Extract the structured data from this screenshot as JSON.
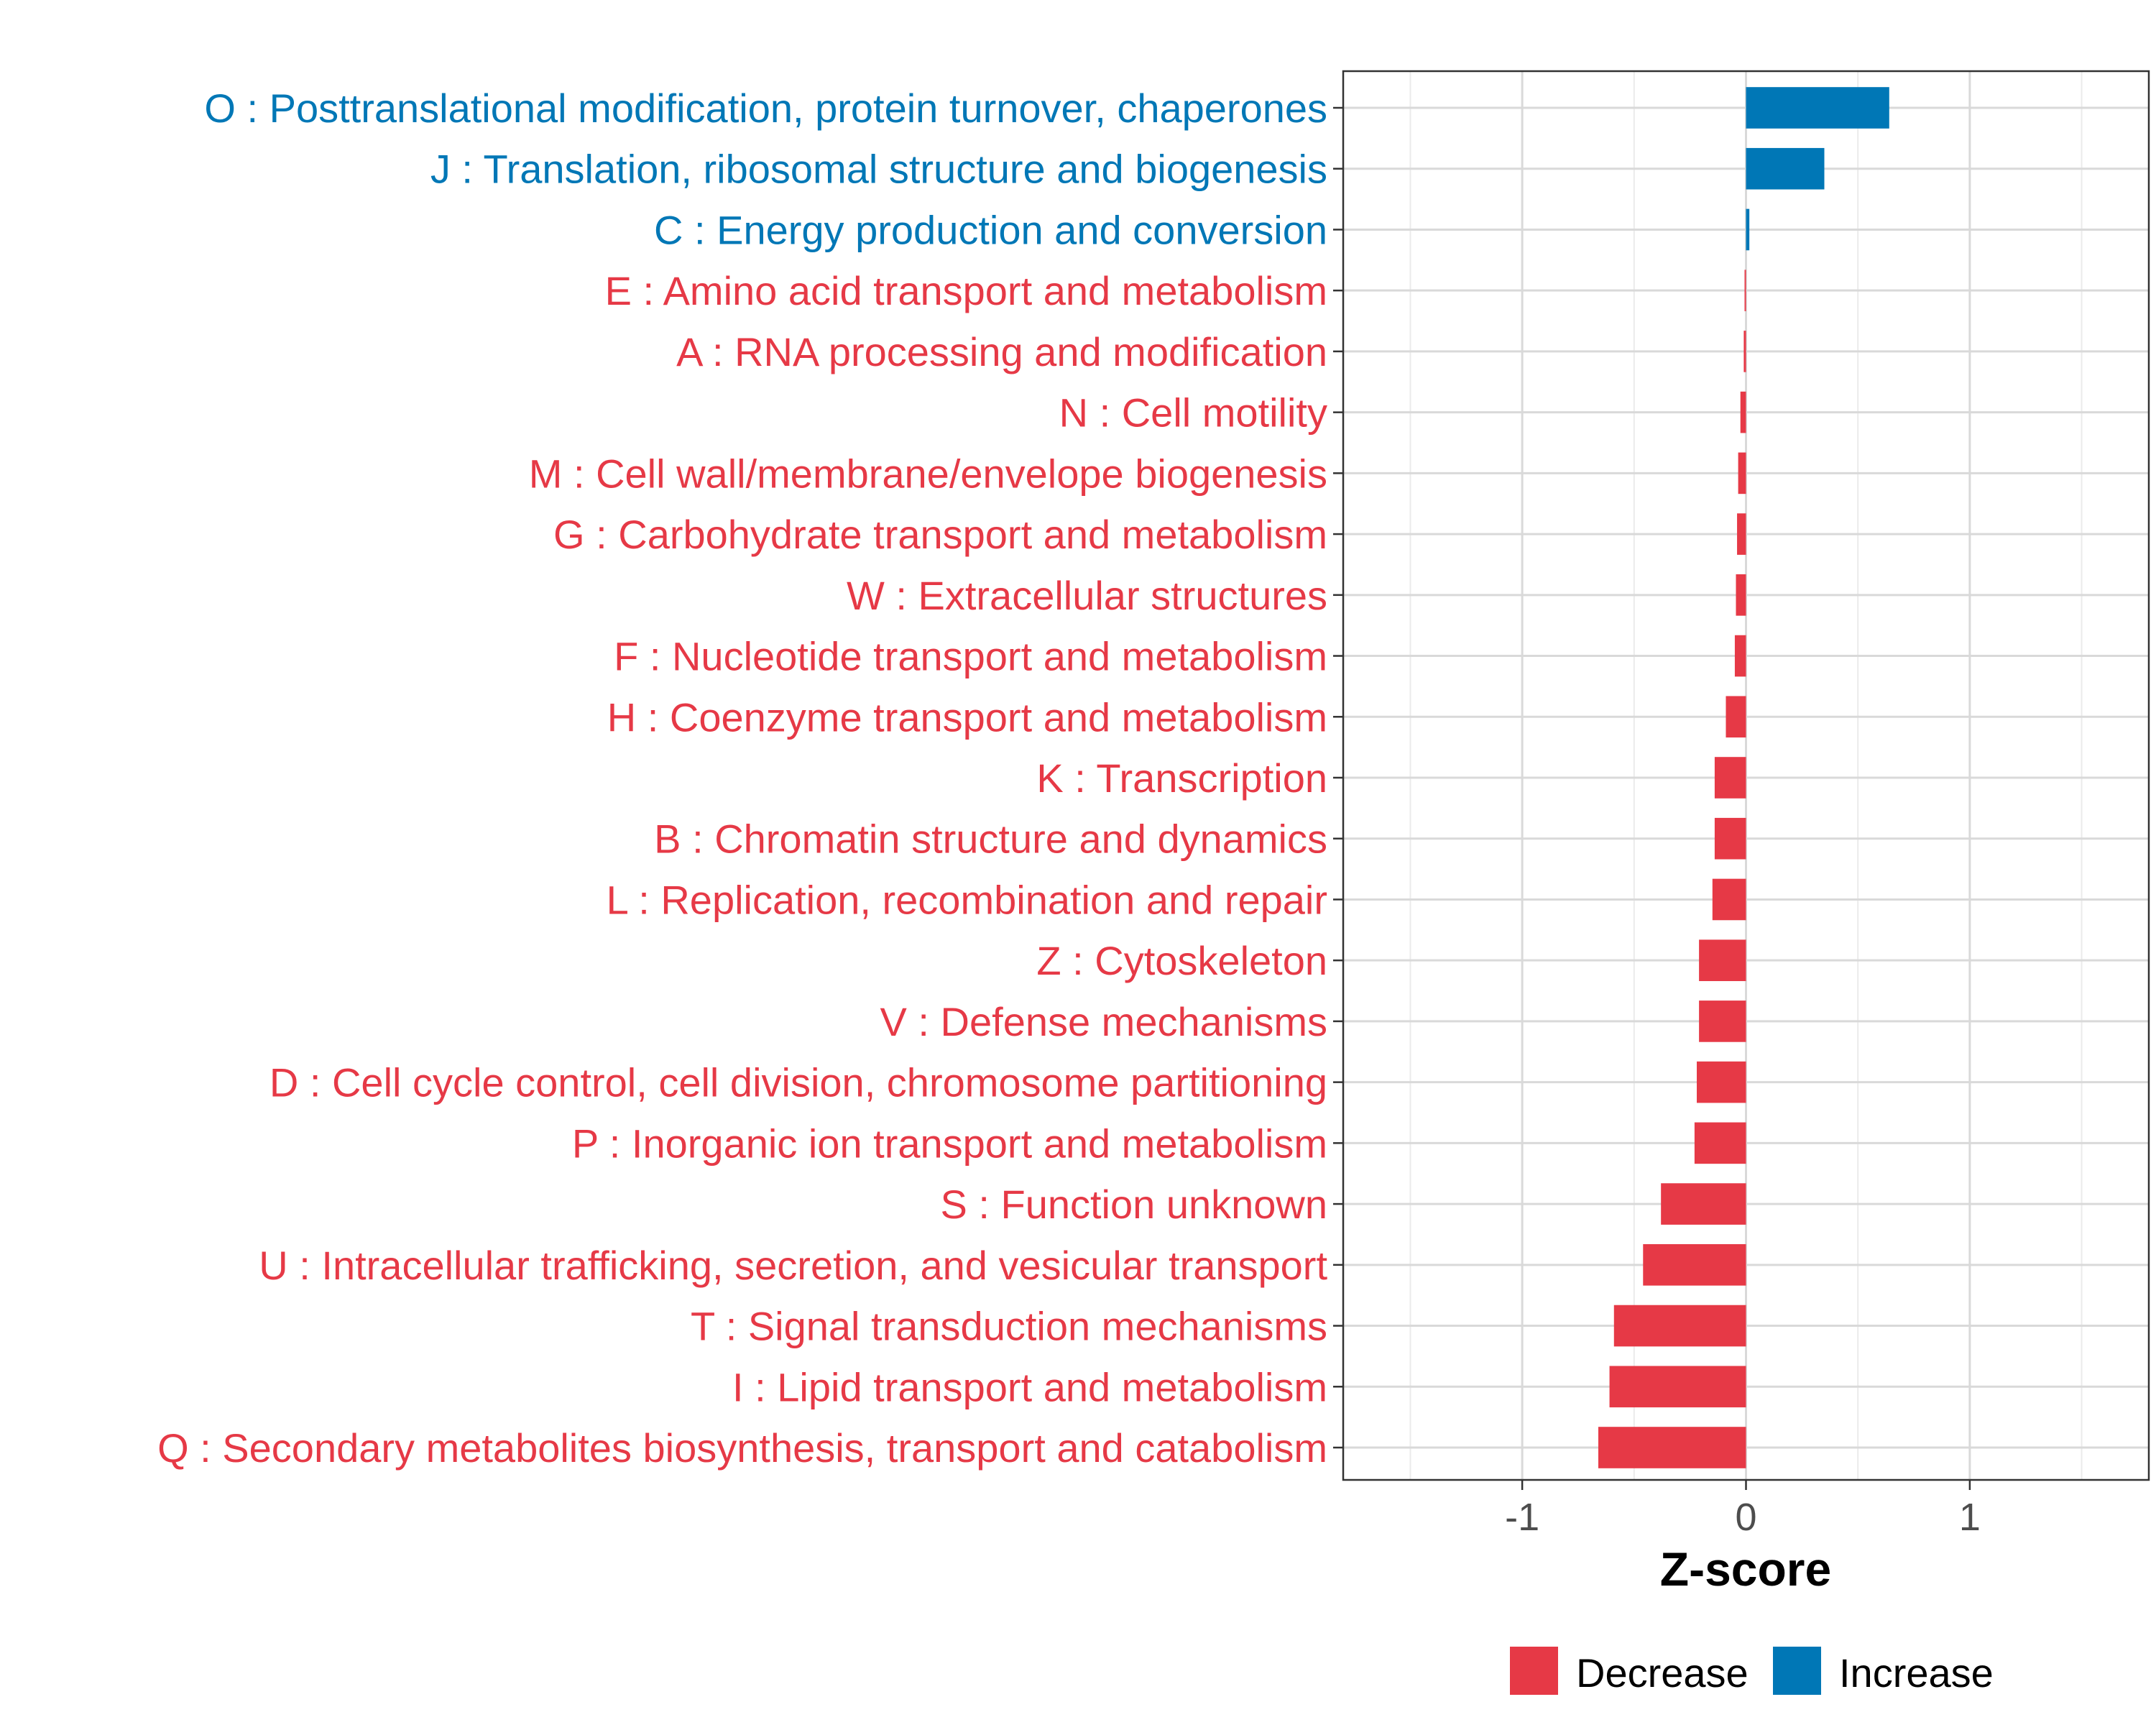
{
  "chart_data": {
    "type": "bar",
    "orientation": "horizontal",
    "xlabel": "Z-score",
    "ylabel": "",
    "xlim": [
      -1.8,
      1.8
    ],
    "xticks": [
      -1,
      0,
      1
    ],
    "xtick_labels": [
      "-1",
      "0",
      "1"
    ],
    "grid": true,
    "legend_position": "bottom",
    "colors": {
      "Decrease": "#E63946",
      "Increase": "#0077B6"
    },
    "legend": [
      {
        "label": "Decrease",
        "color": "#E63946"
      },
      {
        "label": "Increase",
        "color": "#0077B6"
      }
    ],
    "categories": [
      {
        "label": "O : Posttranslational modification, protein turnover, chaperones",
        "value": 0.64,
        "direction": "Increase"
      },
      {
        "label": "J : Translation, ribosomal structure and biogenesis",
        "value": 0.35,
        "direction": "Increase"
      },
      {
        "label": "C : Energy production and conversion",
        "value": 0.015,
        "direction": "Increase"
      },
      {
        "label": "E : Amino acid transport and metabolism",
        "value": -0.005,
        "direction": "Decrease"
      },
      {
        "label": "A : RNA processing and modification",
        "value": -0.01,
        "direction": "Decrease"
      },
      {
        "label": "N : Cell motility",
        "value": -0.025,
        "direction": "Decrease"
      },
      {
        "label": "M : Cell wall/membrane/envelope biogenesis",
        "value": -0.035,
        "direction": "Decrease"
      },
      {
        "label": "G : Carbohydrate transport and metabolism",
        "value": -0.04,
        "direction": "Decrease"
      },
      {
        "label": "W : Extracellular structures",
        "value": -0.045,
        "direction": "Decrease"
      },
      {
        "label": "F : Nucleotide transport and metabolism",
        "value": -0.05,
        "direction": "Decrease"
      },
      {
        "label": "H : Coenzyme transport and metabolism",
        "value": -0.09,
        "direction": "Decrease"
      },
      {
        "label": "K : Transcription",
        "value": -0.14,
        "direction": "Decrease"
      },
      {
        "label": "B : Chromatin structure and dynamics",
        "value": -0.14,
        "direction": "Decrease"
      },
      {
        "label": "L : Replication, recombination and repair",
        "value": -0.15,
        "direction": "Decrease"
      },
      {
        "label": "Z : Cytoskeleton",
        "value": -0.21,
        "direction": "Decrease"
      },
      {
        "label": "V : Defense mechanisms",
        "value": -0.21,
        "direction": "Decrease"
      },
      {
        "label": "D : Cell cycle control, cell division, chromosome partitioning",
        "value": -0.22,
        "direction": "Decrease"
      },
      {
        "label": "P : Inorganic ion transport and metabolism",
        "value": -0.23,
        "direction": "Decrease"
      },
      {
        "label": "S : Function unknown",
        "value": -0.38,
        "direction": "Decrease"
      },
      {
        "label": "U : Intracellular trafficking, secretion, and vesicular transport",
        "value": -0.46,
        "direction": "Decrease"
      },
      {
        "label": "T : Signal transduction mechanisms",
        "value": -0.59,
        "direction": "Decrease"
      },
      {
        "label": "I : Lipid transport and metabolism",
        "value": -0.61,
        "direction": "Decrease"
      },
      {
        "label": "Q : Secondary metabolites biosynthesis, transport and catabolism",
        "value": -0.66,
        "direction": "Decrease"
      }
    ]
  }
}
